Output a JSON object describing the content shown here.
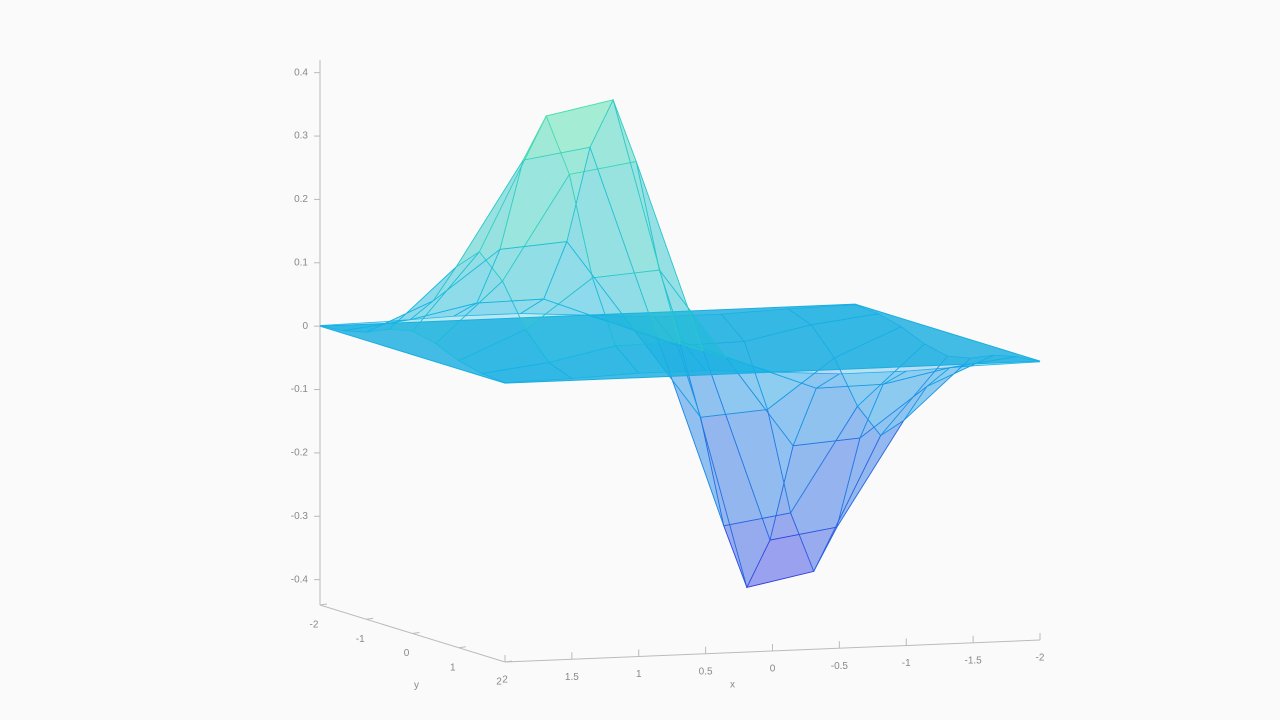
{
  "chart_data": {
    "type": "surface",
    "x": [
      -2,
      -1.5,
      -1,
      -0.5,
      0,
      0.5,
      1,
      1.5,
      2
    ],
    "y": [
      -2,
      -1.5,
      -1,
      -0.5,
      0,
      0.5,
      1,
      1.5,
      2
    ],
    "z": [
      [
        -0.001,
        -0.003,
        -0.007,
        -0.007,
        0,
        0.007,
        0.007,
        0.003,
        0.001
      ],
      [
        -0.004,
        -0.017,
        -0.039,
        -0.041,
        0,
        0.041,
        0.039,
        0.017,
        0.004
      ],
      [
        -0.013,
        -0.058,
        -0.135,
        -0.143,
        0,
        0.143,
        0.135,
        0.058,
        0.013
      ],
      [
        -0.029,
        -0.123,
        -0.287,
        -0.303,
        0,
        0.303,
        0.287,
        0.123,
        0.029
      ],
      [
        -0.037,
        -0.158,
        -0.368,
        -0.389,
        0,
        0.389,
        0.368,
        0.158,
        0.037
      ],
      [
        -0.029,
        -0.123,
        -0.287,
        -0.303,
        0,
        0.303,
        0.287,
        0.123,
        0.029
      ],
      [
        -0.013,
        -0.058,
        -0.135,
        -0.143,
        0,
        0.143,
        0.135,
        0.058,
        0.013
      ],
      [
        -0.004,
        -0.017,
        -0.039,
        -0.041,
        0,
        0.041,
        0.039,
        0.017,
        0.004
      ],
      [
        -0.001,
        -0.003,
        -0.007,
        -0.007,
        0,
        0.007,
        0.007,
        0.003,
        0.001
      ]
    ],
    "xlim": [
      2,
      -2
    ],
    "ylim": [
      -2,
      2
    ],
    "zlim": [
      -0.44,
      0.42
    ],
    "xticks": [
      2,
      1.5,
      1,
      0.5,
      0,
      -0.5,
      -1,
      -1.5,
      -2
    ],
    "yticks": [
      -2,
      -1,
      0,
      1,
      2
    ],
    "zticks": [
      0.4,
      0.3,
      0.2,
      0.1,
      0,
      -0.1,
      -0.2,
      -0.3,
      -0.4
    ],
    "xlabel": "x",
    "ylabel": "y",
    "colormap": [
      "#3a30e0",
      "#0fb0e8",
      "#50e8a0"
    ],
    "plane_z": 0,
    "plane_color": "#1aaee0"
  }
}
